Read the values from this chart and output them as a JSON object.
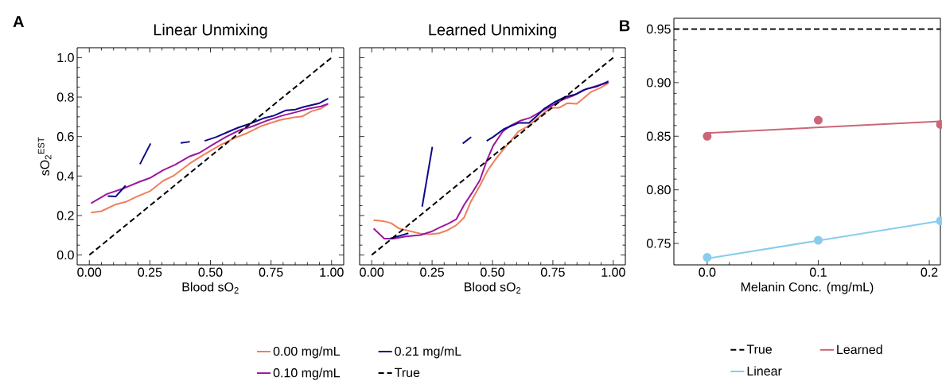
{
  "chart_data": [
    {
      "type": "line",
      "title": "Linear Unmixing",
      "xlabel": "Blood sO$_{2}$",
      "ylabel": "sO$_{2}$$^{EST}$",
      "annotations": [
        "A"
      ],
      "xlim": [
        -0.05,
        1.05
      ],
      "ylim": [
        -0.05,
        1.05
      ],
      "xticks": [
        {
          "value": 0,
          "label": "0.00"
        },
        {
          "value": 0.25,
          "label": "0.25"
        },
        {
          "value": 0.5,
          "label": "0.50"
        },
        {
          "value": 0.75,
          "label": "0.75"
        },
        {
          "value": 1,
          "label": "1.00"
        }
      ],
      "yticks": [
        {
          "value": 0,
          "label": "0.0"
        },
        {
          "value": 0.2,
          "label": "0.2"
        },
        {
          "value": 0.4,
          "label": "0.4"
        },
        {
          "value": 0.6,
          "label": "0.6"
        },
        {
          "value": 0.8,
          "label": "0.8"
        },
        {
          "value": 1,
          "label": "1.0"
        }
      ],
      "legend": "bottom",
      "series": [
        {
          "name": "0.00 mg/mL",
          "color": "#ef7f5a",
          "x": [
            0.007,
            0.05,
            0.106,
            0.15,
            0.2,
            0.25,
            0.305,
            0.35,
            0.415,
            0.476,
            0.542,
            0.603,
            0.652,
            0.707,
            0.785,
            0.84,
            0.879,
            0.917,
            0.956,
            0.983
          ],
          "values": [
            0.215,
            0.222,
            0.255,
            0.269,
            0.298,
            0.323,
            0.376,
            0.403,
            0.464,
            0.511,
            0.558,
            0.594,
            0.618,
            0.652,
            0.683,
            0.696,
            0.702,
            0.728,
            0.742,
            0.763
          ]
        },
        {
          "name": "0.10 mg/mL",
          "color": "#9c179e",
          "x": [
            0.007,
            0.073,
            0.145,
            0.205,
            0.25,
            0.305,
            0.354,
            0.415,
            0.454,
            0.508,
            0.564,
            0.619,
            0.674,
            0.729,
            0.796,
            0.851,
            0.906,
            0.956,
            0.986
          ],
          "values": [
            0.262,
            0.309,
            0.339,
            0.37,
            0.39,
            0.43,
            0.457,
            0.5,
            0.517,
            0.558,
            0.598,
            0.632,
            0.652,
            0.679,
            0.706,
            0.723,
            0.742,
            0.753,
            0.766
          ]
        },
        {
          "name": "0.21 mg/mL",
          "color": "#0d0887",
          "x": [
            0.076,
            0.109,
            0.15,
            0.18,
            0.209,
            0.253,
            0.31,
            0.377,
            0.415,
            0.445,
            0.476,
            0.525,
            0.575,
            0.614,
            0.663,
            0.718,
            0.762,
            0.812,
            0.851,
            0.884,
            0.95,
            0.986
          ],
          "values": [
            0.298,
            0.296,
            0.352,
            null,
            0.46,
            0.565,
            null,
            0.567,
            0.574,
            null,
            0.578,
            0.598,
            0.625,
            0.645,
            0.665,
            0.692,
            0.706,
            0.733,
            0.737,
            0.75,
            0.769,
            0.793
          ]
        },
        {
          "name": "True",
          "color": "#000000",
          "line_style": "dashed",
          "x": [
            0,
            1
          ],
          "values": [
            0,
            1
          ]
        }
      ]
    },
    {
      "type": "line",
      "title": "Learned Unmixing",
      "xlabel": "Blood sO$_{2}$",
      "tick_labels": "x",
      "xlim": [
        -0.05,
        1.05
      ],
      "ylim": [
        -0.05,
        1.05
      ],
      "xticks": [
        {
          "value": 0,
          "label": "0.00"
        },
        {
          "value": 0.25,
          "label": "0.25"
        },
        {
          "value": 0.5,
          "label": "0.50"
        },
        {
          "value": 0.75,
          "label": "0.75"
        },
        {
          "value": 1,
          "label": "1.00"
        }
      ],
      "yticks": [
        {
          "value": 0,
          "label": null
        },
        {
          "value": 0.2,
          "label": null
        },
        {
          "value": 0.4,
          "label": null
        },
        {
          "value": 0.6,
          "label": null
        },
        {
          "value": 0.8,
          "label": null
        },
        {
          "value": 1,
          "label": null
        }
      ],
      "series": [
        {
          "color": "#ef7f5a",
          "x": [
            0.008,
            0.048,
            0.081,
            0.114,
            0.158,
            0.202,
            0.24,
            0.279,
            0.311,
            0.35,
            0.383,
            0.41,
            0.448,
            0.481,
            0.514,
            0.547,
            0.58,
            0.607,
            0.646,
            0.679,
            0.712,
            0.744,
            0.777,
            0.81,
            0.849,
            0.876,
            0.909,
            0.947,
            0.98
          ],
          "values": [
            0.177,
            0.172,
            0.161,
            0.134,
            0.121,
            0.108,
            0.105,
            0.11,
            0.124,
            0.151,
            0.191,
            0.269,
            0.352,
            0.43,
            0.487,
            0.538,
            0.585,
            0.625,
            0.652,
            0.685,
            0.719,
            0.746,
            0.746,
            0.769,
            0.766,
            0.793,
            0.827,
            0.847,
            0.871
          ]
        },
        {
          "color": "#9c179e",
          "x": [
            0.008,
            0.052,
            0.092,
            0.141,
            0.202,
            0.246,
            0.284,
            0.317,
            0.35,
            0.383,
            0.416,
            0.448,
            0.476,
            0.503,
            0.542,
            0.575,
            0.613,
            0.657,
            0.7,
            0.744,
            0.788,
            0.832,
            0.876,
            0.92,
            0.98
          ],
          "values": [
            0.134,
            0.083,
            0.083,
            0.094,
            0.101,
            0.118,
            0.141,
            0.159,
            0.181,
            0.255,
            0.316,
            0.379,
            0.477,
            0.554,
            0.625,
            0.656,
            0.679,
            0.696,
            0.726,
            0.755,
            0.786,
            0.806,
            0.836,
            0.853,
            0.874
          ]
        },
        {
          "color": "#0d0887",
          "x": [
            0.076,
            0.152,
            0.18,
            0.209,
            0.251,
            0.31,
            0.377,
            0.412,
            0.445,
            0.476,
            0.503,
            0.547,
            0.607,
            0.651,
            0.679,
            0.712,
            0.755,
            0.799,
            0.843,
            0.887,
            0.931,
            0.98
          ],
          "values": [
            0.083,
            0.11,
            null,
            0.245,
            0.548,
            null,
            0.565,
            0.598,
            null,
            0.578,
            0.598,
            0.638,
            0.669,
            0.669,
            0.699,
            0.739,
            0.773,
            0.8,
            0.813,
            0.84,
            0.853,
            0.88
          ]
        },
        {
          "color": "#000000",
          "line_style": "dashed",
          "x": [
            0,
            1
          ],
          "values": [
            0,
            1
          ]
        }
      ]
    },
    {
      "type": "line",
      "xlabel": "Melanin Conc. (mg/mL)",
      "annotations": [
        "B"
      ],
      "xlim": [
        -0.03,
        0.21
      ],
      "ylim": [
        0.73,
        0.96
      ],
      "xticks": [
        {
          "value": 0,
          "label": "0.0"
        },
        {
          "value": 0.1,
          "label": "0.1"
        },
        {
          "value": 0.2,
          "label": "0.2"
        }
      ],
      "yticks": [
        0.75,
        {
          "value": 0.8,
          "label": "0.80"
        },
        0.85,
        {
          "value": 0.9,
          "label": "0.90"
        },
        0.95
      ],
      "legend": "bottom",
      "ref_lines": [
        {
          "axis": "y",
          "value": 0.95,
          "label": "True",
          "color": "#000000",
          "line_style": "dashed"
        }
      ],
      "series": [
        {
          "name": "Linear",
          "color": "#88ccee",
          "x": [
            0,
            0.21
          ],
          "values": [
            0.736,
            0.771
          ]
        },
        {
          "name": "Learned",
          "color": "#cc6677",
          "x": [
            0,
            0.21
          ],
          "values": [
            0.853,
            0.864
          ]
        },
        {
          "type": "scatter",
          "marker": "circle",
          "color": "#88ccee",
          "x": [
            0,
            0.1,
            0.21
          ],
          "values": [
            0.737,
            0.753,
            0.771
          ]
        },
        {
          "type": "scatter",
          "marker": "circle",
          "color": "#cc6677",
          "x": [
            0,
            0.1,
            0.21
          ],
          "values": [
            0.85,
            0.865,
            0.861
          ]
        }
      ]
    }
  ]
}
